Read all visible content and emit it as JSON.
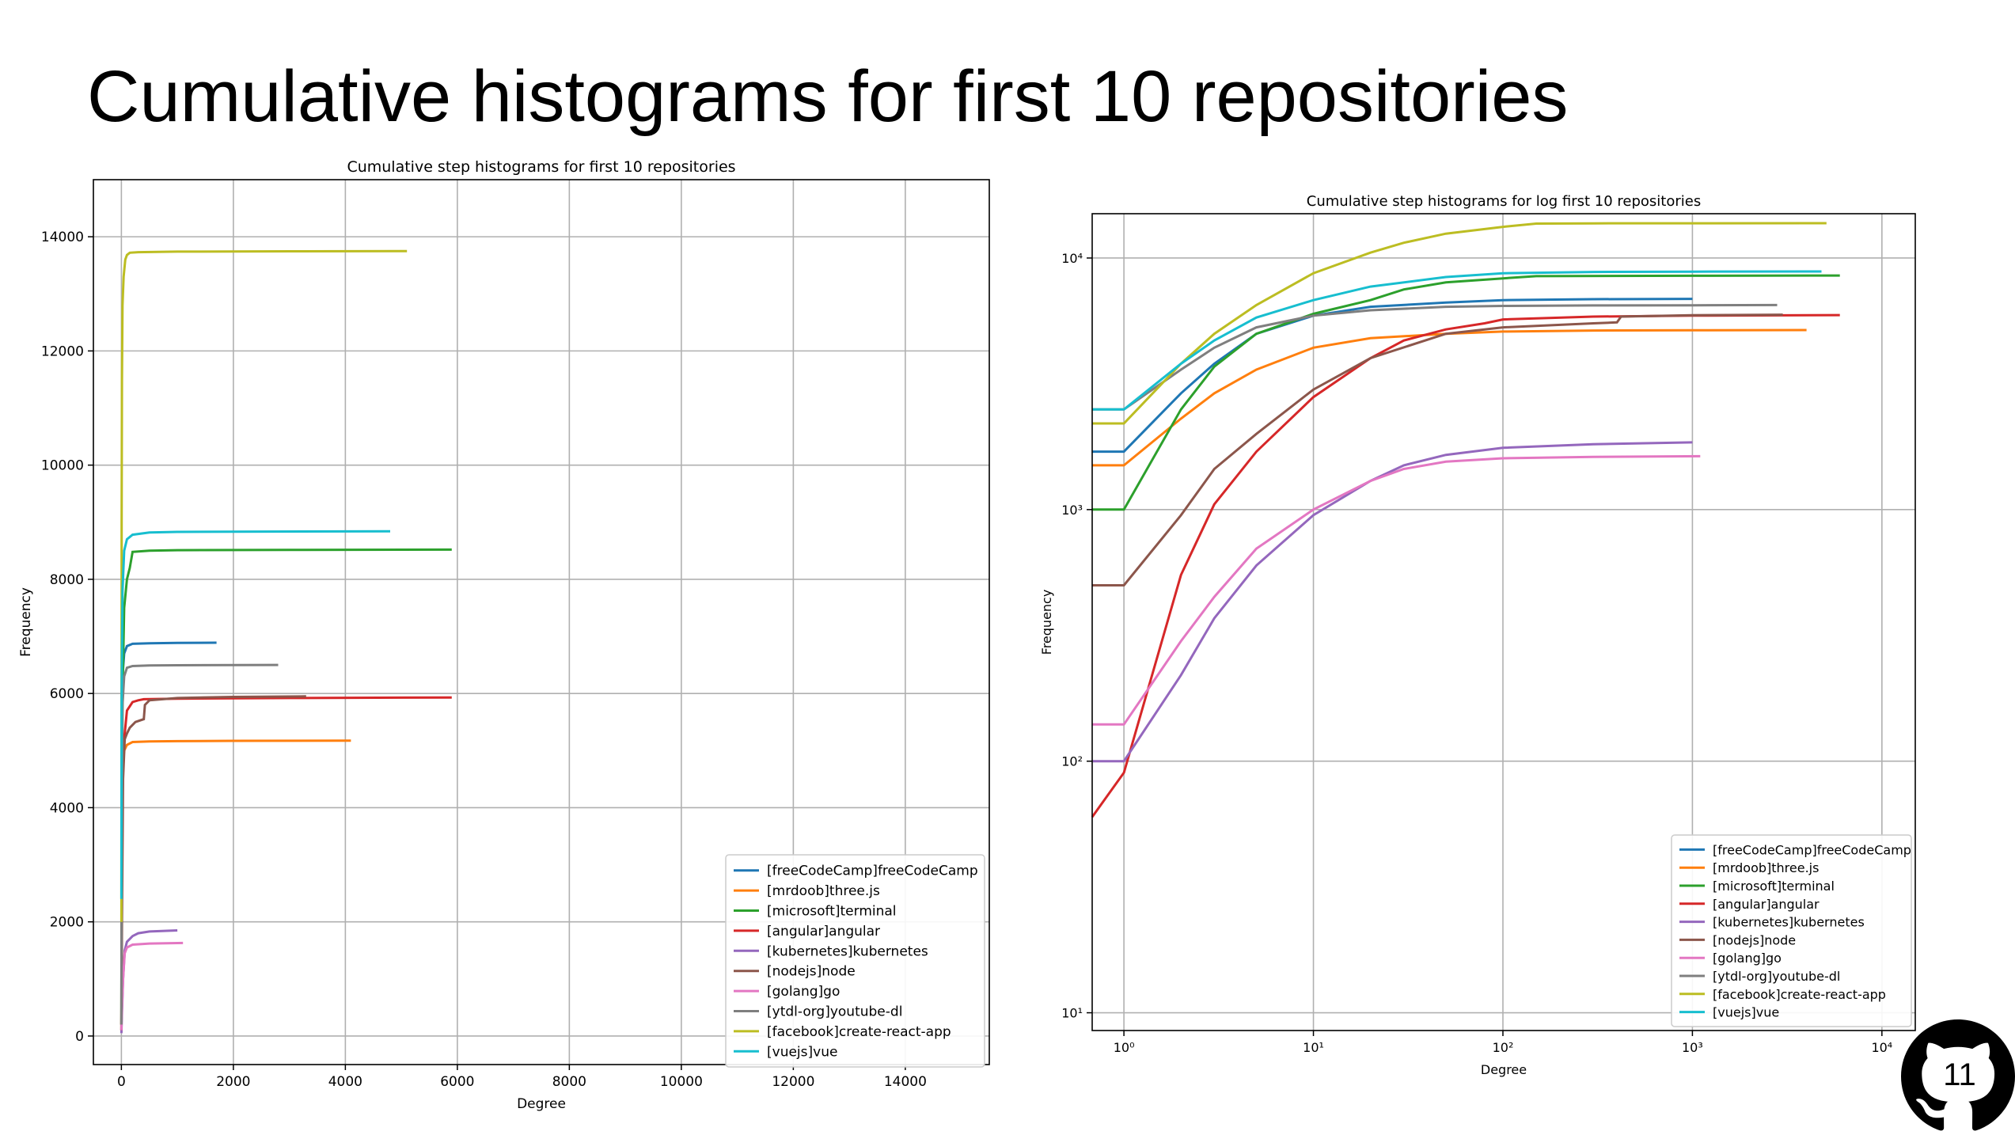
{
  "slide": {
    "title": "Cumulative histograms for first 10 repositories",
    "page_number": "11"
  },
  "colors": {
    "[freeCodeCamp]freeCodeCamp": "#1f77b4",
    "[mrdoob]three.js": "#ff7f0e",
    "[microsoft]terminal": "#2ca02c",
    "[angular]angular": "#d62728",
    "[kubernetes]kubernetes": "#9467bd",
    "[nodejs]node": "#8c564b",
    "[golang]go": "#e377c2",
    "[ytdl-org]youtube-dl": "#7f7f7f",
    "[facebook]create-react-app": "#bcbd22",
    "[vuejs]vue": "#17becf"
  },
  "chart_data": [
    {
      "type": "line",
      "title": "Cumulative step histograms for first 10 repositories",
      "xlabel": "Degree",
      "ylabel": "Frequency",
      "xlim": [
        -500,
        15500
      ],
      "ylim": [
        -500,
        15000
      ],
      "xticks": [
        0,
        2000,
        4000,
        6000,
        8000,
        10000,
        12000,
        14000
      ],
      "yticks": [
        0,
        2000,
        4000,
        6000,
        8000,
        10000,
        12000,
        14000
      ],
      "grid": true,
      "legend": "lower-right",
      "series": [
        {
          "name": "[freeCodeCamp]freeCodeCamp",
          "x": [
            0,
            5,
            20,
            50,
            100,
            200,
            500,
            1000,
            1700
          ],
          "y": [
            200,
            4000,
            6300,
            6700,
            6830,
            6870,
            6880,
            6885,
            6890
          ]
        },
        {
          "name": "[mrdoob]three.js",
          "x": [
            0,
            5,
            20,
            50,
            100,
            200,
            500,
            1000,
            2000,
            4100
          ],
          "y": [
            200,
            3000,
            4700,
            5000,
            5100,
            5150,
            5160,
            5165,
            5170,
            5175
          ]
        },
        {
          "name": "[microsoft]terminal",
          "x": [
            0,
            5,
            20,
            50,
            100,
            150,
            200,
            500,
            1000,
            3000,
            5900
          ],
          "y": [
            200,
            3000,
            6000,
            7500,
            8000,
            8200,
            8480,
            8500,
            8510,
            8515,
            8520
          ]
        },
        {
          "name": "[angular]angular",
          "x": [
            0,
            10,
            30,
            60,
            100,
            200,
            300,
            400,
            1000,
            3000,
            5900
          ],
          "y": [
            100,
            3000,
            5000,
            5300,
            5700,
            5850,
            5880,
            5900,
            5910,
            5920,
            5930
          ]
        },
        {
          "name": "[kubernetes]kubernetes",
          "x": [
            0,
            10,
            30,
            60,
            100,
            200,
            300,
            500,
            1000
          ],
          "y": [
            50,
            400,
            1000,
            1500,
            1650,
            1750,
            1800,
            1830,
            1850
          ]
        },
        {
          "name": "[nodejs]node",
          "x": [
            0,
            10,
            30,
            60,
            100,
            150,
            250,
            400,
            420,
            500,
            1000,
            2000,
            3300
          ],
          "y": [
            100,
            2000,
            4500,
            5200,
            5300,
            5400,
            5500,
            5550,
            5800,
            5880,
            5920,
            5940,
            5950
          ]
        },
        {
          "name": "[golang]go",
          "x": [
            0,
            10,
            30,
            60,
            100,
            200,
            500,
            1100
          ],
          "y": [
            100,
            500,
            1000,
            1450,
            1550,
            1600,
            1620,
            1630
          ]
        },
        {
          "name": "[ytdl-org]youtube-dl",
          "x": [
            0,
            5,
            20,
            50,
            100,
            200,
            500,
            1000,
            2800
          ],
          "y": [
            200,
            3500,
            5800,
            6300,
            6450,
            6480,
            6490,
            6495,
            6500
          ]
        },
        {
          "name": "[facebook]create-react-app",
          "x": [
            0,
            5,
            10,
            20,
            40,
            70,
            100,
            150,
            300,
            1000,
            3000,
            5100
          ],
          "y": [
            2000,
            9000,
            11500,
            12800,
            13300,
            13600,
            13680,
            13720,
            13730,
            13740,
            13745,
            13750
          ]
        },
        {
          "name": "[vuejs]vue",
          "x": [
            0,
            5,
            20,
            50,
            100,
            200,
            500,
            1000,
            2000,
            4800
          ],
          "y": [
            2400,
            6000,
            7800,
            8500,
            8700,
            8780,
            8820,
            8830,
            8835,
            8840
          ]
        }
      ]
    },
    {
      "type": "line",
      "title": "Cumulative step histograms for log first 10 repositories",
      "xlabel": "Degree",
      "ylabel": "Frequency",
      "xscale": "log",
      "yscale": "log",
      "xlim": [
        0.68,
        15000
      ],
      "ylim": [
        8.5,
        15000
      ],
      "xticks": [
        1,
        10,
        100,
        1000,
        10000
      ],
      "xtick_labels": [
        "10⁰",
        "10¹",
        "10²",
        "10³",
        "10⁴"
      ],
      "yticks": [
        10,
        100,
        1000,
        10000
      ],
      "ytick_labels": [
        "10¹",
        "10²",
        "10³",
        "10⁴"
      ],
      "grid": true,
      "legend": "lower-right",
      "series": [
        {
          "name": "[freeCodeCamp]freeCodeCamp",
          "x": [
            0.68,
            1,
            2,
            3,
            5,
            10,
            20,
            50,
            100,
            300,
            1000
          ],
          "y": [
            1700,
            1700,
            2900,
            3800,
            5000,
            5900,
            6400,
            6650,
            6800,
            6860,
            6880
          ]
        },
        {
          "name": "[mrdoob]three.js",
          "x": [
            0.68,
            1,
            2,
            3,
            5,
            10,
            20,
            50,
            100,
            300,
            1000,
            4000
          ],
          "y": [
            1500,
            1500,
            2300,
            2900,
            3600,
            4400,
            4800,
            5000,
            5100,
            5150,
            5160,
            5170
          ]
        },
        {
          "name": "[microsoft]terminal",
          "x": [
            0.68,
            1,
            2,
            3,
            5,
            10,
            20,
            30,
            50,
            100,
            150,
            1000,
            6000
          ],
          "y": [
            1000,
            1000,
            2500,
            3700,
            5000,
            6000,
            6800,
            7500,
            8000,
            8300,
            8470,
            8500,
            8520
          ]
        },
        {
          "name": "[angular]angular",
          "x": [
            0.68,
            1,
            2,
            3,
            5,
            10,
            20,
            30,
            50,
            80,
            100,
            300,
            1000,
            6000
          ],
          "y": [
            60,
            90,
            550,
            1050,
            1700,
            2800,
            4000,
            4700,
            5200,
            5500,
            5700,
            5850,
            5900,
            5930
          ]
        },
        {
          "name": "[kubernetes]kubernetes",
          "x": [
            0.68,
            1,
            2,
            3,
            5,
            10,
            20,
            30,
            50,
            100,
            300,
            1000
          ],
          "y": [
            100,
            100,
            220,
            370,
            600,
            950,
            1300,
            1500,
            1650,
            1760,
            1820,
            1850
          ]
        },
        {
          "name": "[nodejs]node",
          "x": [
            0.68,
            1,
            2,
            3,
            5,
            10,
            20,
            50,
            100,
            300,
            400,
            420,
            1000,
            3000
          ],
          "y": [
            500,
            500,
            950,
            1450,
            2000,
            3000,
            4000,
            5000,
            5300,
            5500,
            5550,
            5850,
            5920,
            5950
          ]
        },
        {
          "name": "[golang]go",
          "x": [
            0.68,
            1,
            2,
            3,
            5,
            10,
            20,
            30,
            50,
            100,
            300,
            1100
          ],
          "y": [
            140,
            140,
            300,
            450,
            700,
            1000,
            1300,
            1450,
            1550,
            1600,
            1620,
            1630
          ]
        },
        {
          "name": "[ytdl-org]youtube-dl",
          "x": [
            0.68,
            1,
            2,
            3,
            5,
            10,
            20,
            50,
            100,
            300,
            1000,
            2800
          ],
          "y": [
            2500,
            2500,
            3600,
            4400,
            5300,
            5900,
            6200,
            6400,
            6450,
            6480,
            6490,
            6500
          ]
        },
        {
          "name": "[facebook]create-react-app",
          "x": [
            0.68,
            1,
            2,
            3,
            5,
            10,
            20,
            30,
            50,
            100,
            150,
            300,
            1000,
            5100
          ],
          "y": [
            2200,
            2200,
            3800,
            5000,
            6500,
            8700,
            10500,
            11500,
            12500,
            13300,
            13700,
            13730,
            13740,
            13750
          ]
        },
        {
          "name": "[vuejs]vue",
          "x": [
            0.68,
            1,
            2,
            3,
            5,
            10,
            20,
            50,
            100,
            300,
            1000,
            4800
          ],
          "y": [
            2500,
            2500,
            3800,
            4700,
            5800,
            6800,
            7700,
            8400,
            8700,
            8800,
            8830,
            8840
          ]
        }
      ]
    }
  ]
}
